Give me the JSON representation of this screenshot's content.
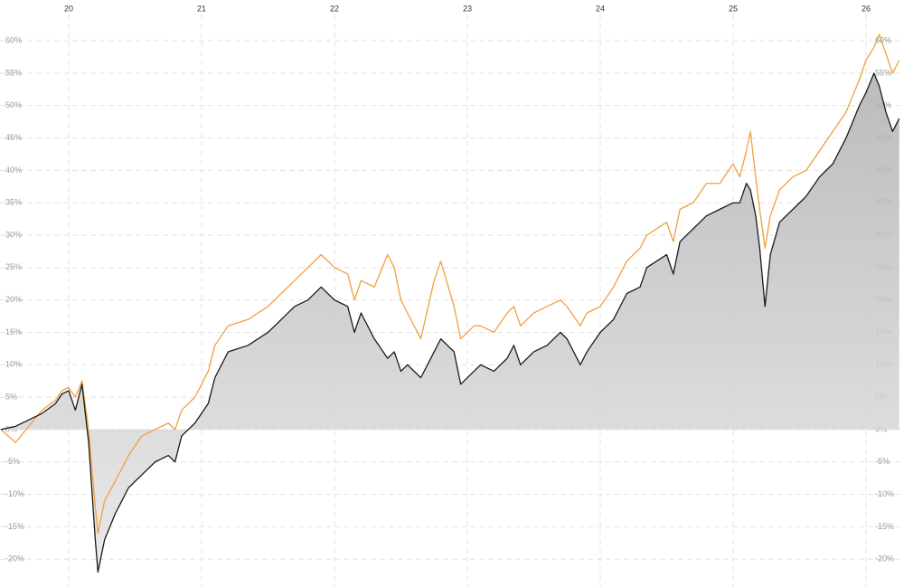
{
  "chart_data": {
    "type": "line",
    "x": [
      19.49,
      19.6,
      19.7,
      19.8,
      19.9,
      19.95,
      20.0,
      20.05,
      20.1,
      20.15,
      20.2,
      20.22,
      20.27,
      20.35,
      20.45,
      20.55,
      20.65,
      20.75,
      20.8,
      20.85,
      20.95,
      21.05,
      21.1,
      21.2,
      21.35,
      21.5,
      21.6,
      21.7,
      21.8,
      21.9,
      22.0,
      22.1,
      22.15,
      22.2,
      22.3,
      22.4,
      22.45,
      22.5,
      22.55,
      22.65,
      22.75,
      22.8,
      22.9,
      22.95,
      23.05,
      23.1,
      23.2,
      23.3,
      23.35,
      23.4,
      23.5,
      23.6,
      23.7,
      23.75,
      23.85,
      23.9,
      24.0,
      24.1,
      24.2,
      24.3,
      24.35,
      24.5,
      24.55,
      24.6,
      24.7,
      24.8,
      24.9,
      25.0,
      25.05,
      25.1,
      25.13,
      25.17,
      25.2,
      25.24,
      25.28,
      25.35,
      25.45,
      25.55,
      25.65,
      25.75,
      25.85,
      25.95,
      26.0,
      26.06,
      26.1,
      26.15,
      26.2,
      26.25
    ],
    "series": [
      {
        "color": "#1a1a1a",
        "area_color": "#c8c8c8",
        "values": [
          0,
          0.5,
          1.5,
          2.5,
          4,
          5.5,
          6,
          3,
          7,
          -2,
          -17,
          -22,
          -17,
          -13,
          -9,
          -7,
          -5,
          -4,
          -5,
          -1,
          1,
          4,
          8,
          12,
          13,
          15,
          17,
          19,
          20,
          22,
          20,
          19,
          15,
          18,
          14,
          11,
          12,
          9,
          10,
          8,
          12,
          14,
          12,
          7,
          9,
          10,
          9,
          11,
          13,
          10,
          12,
          13,
          15,
          14,
          10,
          12,
          15,
          17,
          21,
          22,
          25,
          27,
          24,
          29,
          31,
          33,
          34,
          35,
          35,
          38,
          37,
          33,
          28,
          19,
          27,
          32,
          34,
          36,
          39,
          41,
          45,
          50,
          52,
          55,
          53,
          49,
          46,
          48
        ]
      },
      {
        "color": "#f0a040",
        "values": [
          0,
          -2,
          0.5,
          3,
          4.5,
          6,
          6.5,
          5,
          7.5,
          0,
          -12,
          -16,
          -11,
          -8,
          -4,
          -1,
          0,
          1,
          0,
          3,
          5,
          9,
          13,
          16,
          17,
          19,
          21,
          23,
          25,
          27,
          25,
          24,
          20,
          23,
          22,
          27,
          25,
          20,
          18,
          14,
          23,
          26,
          19,
          14,
          16,
          16,
          15,
          18,
          19,
          16,
          18,
          19,
          20,
          19,
          16,
          18,
          19,
          22,
          26,
          28,
          30,
          32,
          29,
          34,
          35,
          38,
          38,
          41,
          39,
          43,
          46,
          39,
          34,
          28,
          33,
          37,
          39,
          40,
          43,
          46,
          49,
          54,
          57,
          59,
          61,
          58,
          55,
          57
        ]
      }
    ],
    "xlim": [
      19.483,
      26.286
    ],
    "xticks": [
      20,
      21,
      22,
      23,
      24,
      25,
      26
    ],
    "ylim": [
      -24.3,
      66.3
    ],
    "yticks": [
      {
        "value": -20,
        "label": "-20%"
      },
      {
        "value": -15,
        "label": "-15%"
      },
      {
        "value": -10,
        "label": "-10%"
      },
      {
        "value": -5,
        "label": "-5%"
      },
      {
        "value": 0,
        "label": "0%"
      },
      {
        "value": 5,
        "label": "5%"
      },
      {
        "value": 10,
        "label": "10%"
      },
      {
        "value": 15,
        "label": "15%"
      },
      {
        "value": 20,
        "label": "20%"
      },
      {
        "value": 25,
        "label": "25%"
      },
      {
        "value": 30,
        "label": "30%"
      },
      {
        "value": 35,
        "label": "35%"
      },
      {
        "value": 40,
        "label": "40%"
      },
      {
        "value": 45,
        "label": "45%"
      },
      {
        "value": 50,
        "label": "50%"
      },
      {
        "value": 55,
        "label": "55%"
      },
      {
        "value": 60,
        "label": "60%"
      }
    ],
    "grid": true
  }
}
